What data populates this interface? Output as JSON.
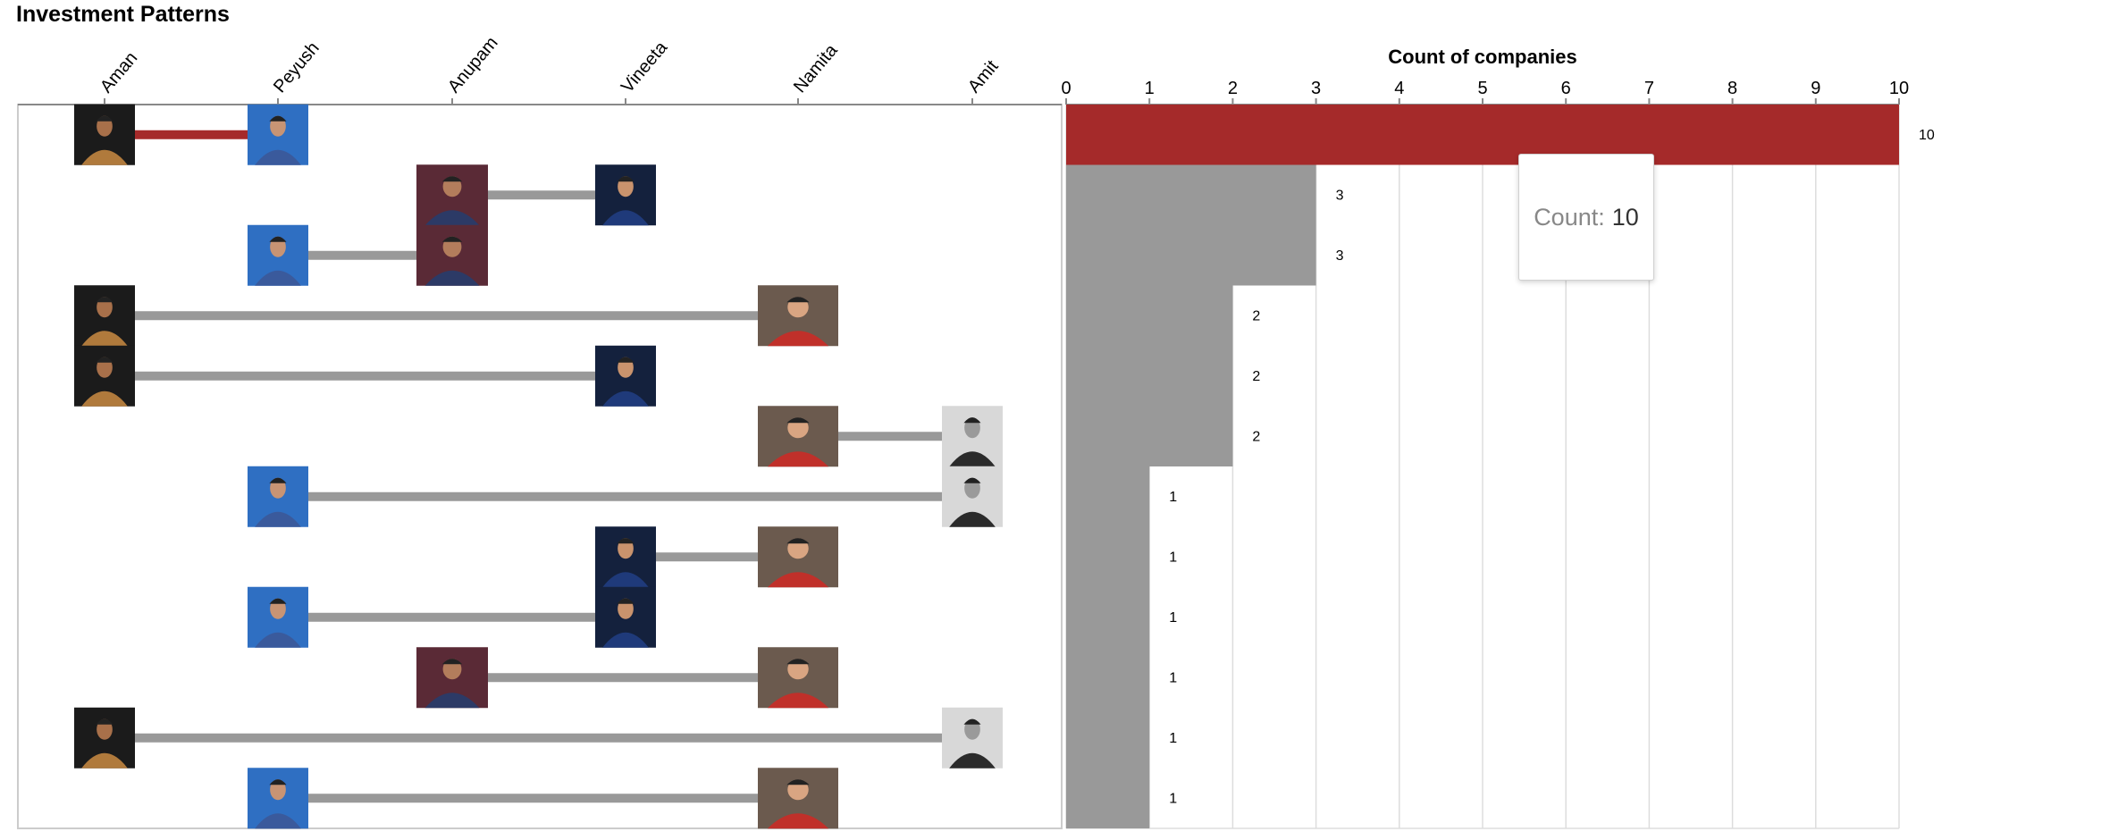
{
  "title": "Investment Patterns",
  "sharks": [
    "Aman",
    "Peyush",
    "Anupam",
    "Vineeta",
    "Namita",
    "Amit"
  ],
  "icons": {
    "Aman": "shark-avatar-aman",
    "Peyush": "shark-avatar-peyush",
    "Anupam": "shark-avatar-anupam",
    "Vineeta": "shark-avatar-vineeta",
    "Namita": "shark-avatar-namita",
    "Amit": "shark-avatar-amit"
  },
  "colors": {
    "highlight": "#a52a2a",
    "bar": "#999999",
    "grid": "#dddddd"
  },
  "chart_data": {
    "type": "bar",
    "orientation": "horizontal",
    "xlabel": "Count of companies",
    "xlim": [
      0,
      10
    ],
    "ticks": [
      0,
      1,
      2,
      3,
      4,
      5,
      6,
      7,
      8,
      9,
      10
    ],
    "grid": true,
    "rows": [
      {
        "pair": [
          "Aman",
          "Peyush"
        ],
        "value": 10,
        "highlight": true
      },
      {
        "pair": [
          "Anupam",
          "Vineeta"
        ],
        "value": 3
      },
      {
        "pair": [
          "Peyush",
          "Anupam"
        ],
        "value": 3
      },
      {
        "pair": [
          "Aman",
          "Namita"
        ],
        "value": 2
      },
      {
        "pair": [
          "Aman",
          "Vineeta"
        ],
        "value": 2
      },
      {
        "pair": [
          "Namita",
          "Amit"
        ],
        "value": 2
      },
      {
        "pair": [
          "Peyush",
          "Amit"
        ],
        "value": 1
      },
      {
        "pair": [
          "Vineeta",
          "Namita"
        ],
        "value": 1
      },
      {
        "pair": [
          "Peyush",
          "Vineeta"
        ],
        "value": 1
      },
      {
        "pair": [
          "Anupam",
          "Namita"
        ],
        "value": 1
      },
      {
        "pair": [
          "Aman",
          "Amit"
        ],
        "value": 1
      },
      {
        "pair": [
          "Peyush",
          "Namita"
        ],
        "value": 1
      }
    ]
  },
  "tooltip": {
    "label": "Count:",
    "value": "10"
  }
}
